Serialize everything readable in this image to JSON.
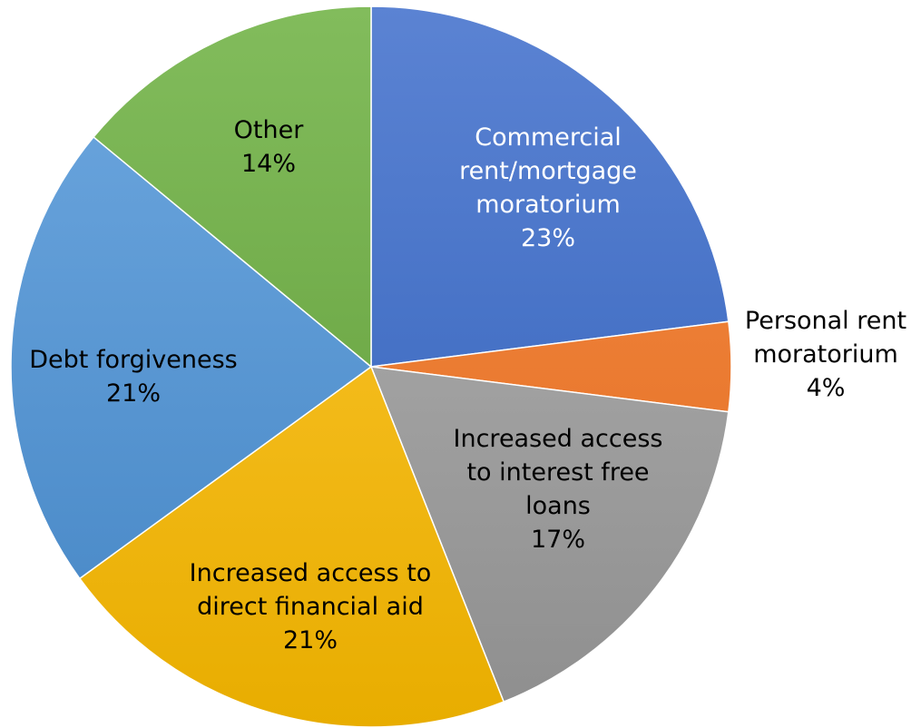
{
  "chart_data": {
    "type": "pie",
    "title": "",
    "slices": [
      {
        "label": [
          "Commercial",
          "rent/mortgage",
          "moratorium"
        ],
        "value": 23,
        "value_label": "23%",
        "color": "#4472c4",
        "gradient_top": "#5b83d3",
        "gradient_bottom": "#2f5fb8",
        "text_color": "#ffffff"
      },
      {
        "label": [
          "Personal rent",
          "moratorium"
        ],
        "value": 4,
        "value_label": "4%",
        "color": "#ed7d31",
        "gradient_top": "#f28c46",
        "gradient_bottom": "#e46b1e",
        "text_color": "#000000"
      },
      {
        "label": [
          "Increased access",
          "to interest free",
          "loans"
        ],
        "value": 17,
        "value_label": "17%",
        "color": "#a5a5a5",
        "gradient_top": "#b4b4b4",
        "gradient_bottom": "#8e8e8e",
        "text_color": "#000000"
      },
      {
        "label": [
          "Increased access to",
          "direct financial aid"
        ],
        "value": 21,
        "value_label": "21%",
        "color": "#ffc000",
        "gradient_top": "#ffc935",
        "gradient_bottom": "#e8ad00",
        "text_color": "#000000"
      },
      {
        "label": [
          "Debt forgiveness"
        ],
        "value": 21,
        "value_label": "21%",
        "color": "#5b9bd5",
        "gradient_top": "#6ea8e0",
        "gradient_bottom": "#4485c4",
        "text_color": "#000000"
      },
      {
        "label": [
          "Other"
        ],
        "value": 14,
        "value_label": "14%",
        "color": "#70ad47",
        "gradient_top": "#82bc5c",
        "gradient_bottom": "#5e9a36",
        "text_color": "#000000"
      }
    ]
  }
}
